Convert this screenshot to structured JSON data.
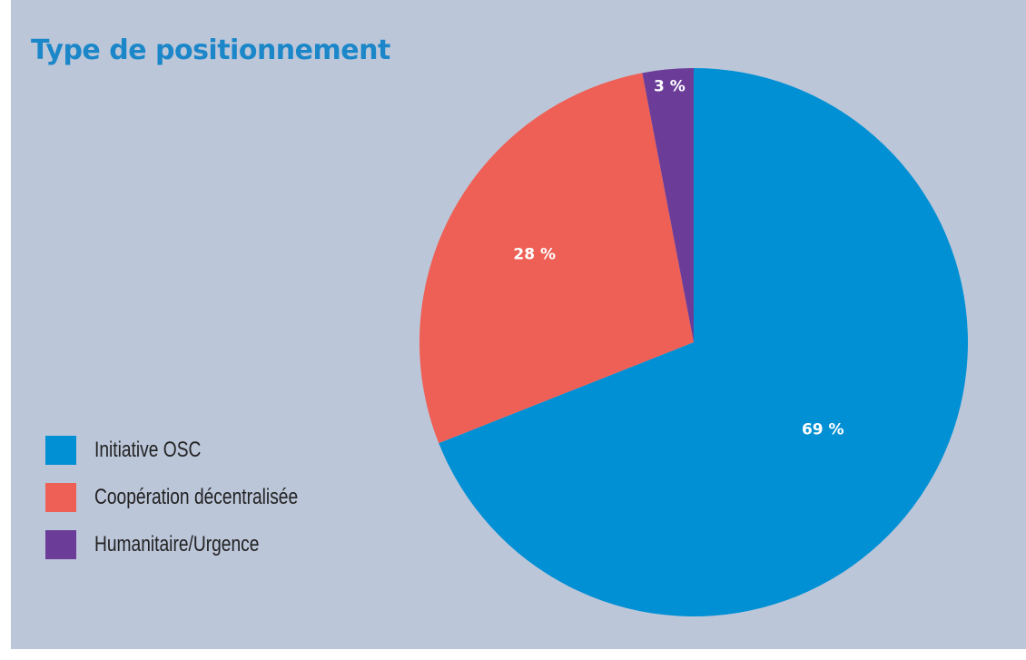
{
  "chart_data": {
    "type": "pie",
    "title": "Type de positionnement",
    "categories": [
      "Initiative OSC",
      "Coopération décentralisée",
      "Humanitaire/Urgence"
    ],
    "values": [
      69,
      28,
      3
    ],
    "data_labels": [
      "69 %",
      "28 %",
      "3 %"
    ],
    "colors": [
      "#0290d4",
      "#ee6055",
      "#6b3d99"
    ],
    "start_angle_degrees": 0,
    "direction": "clockwise",
    "legend_position": "bottom-left"
  },
  "colors": {
    "background": "#bcc6d9",
    "title": "#1b87c9"
  }
}
